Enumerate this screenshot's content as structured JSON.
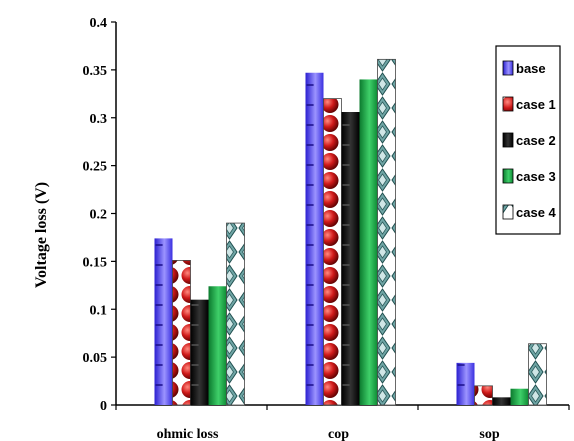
{
  "chart_data": {
    "type": "bar",
    "title": "",
    "xlabel": "",
    "ylabel": "Voltage loss (V)",
    "ylim": [
      0,
      0.4
    ],
    "yticks": [
      0,
      0.05,
      0.1,
      0.15,
      0.2,
      0.25,
      0.3,
      0.35,
      0.4
    ],
    "ytick_labels": [
      "0",
      "0.05",
      "0.1",
      "0.15",
      "0.2",
      "0.25",
      "0.3",
      "0.35",
      "0.4"
    ],
    "grid": false,
    "legend_position": "top-right",
    "categories": [
      "ohmic loss",
      "cop",
      "sop"
    ],
    "series": [
      {
        "name": "base",
        "values": [
          0.174,
          0.347,
          0.044
        ],
        "color": "#6a5cff"
      },
      {
        "name": "case 1",
        "values": [
          0.151,
          0.32,
          0.02
        ],
        "color": "#c0181c"
      },
      {
        "name": "case 2",
        "values": [
          0.11,
          0.306,
          0.008
        ],
        "color": "#000000"
      },
      {
        "name": "case 3",
        "values": [
          0.124,
          0.34,
          0.017
        ],
        "color": "#1aa84a"
      },
      {
        "name": "case 4",
        "values": [
          0.19,
          0.361,
          0.064
        ],
        "color": "#3f7f7f"
      }
    ]
  }
}
